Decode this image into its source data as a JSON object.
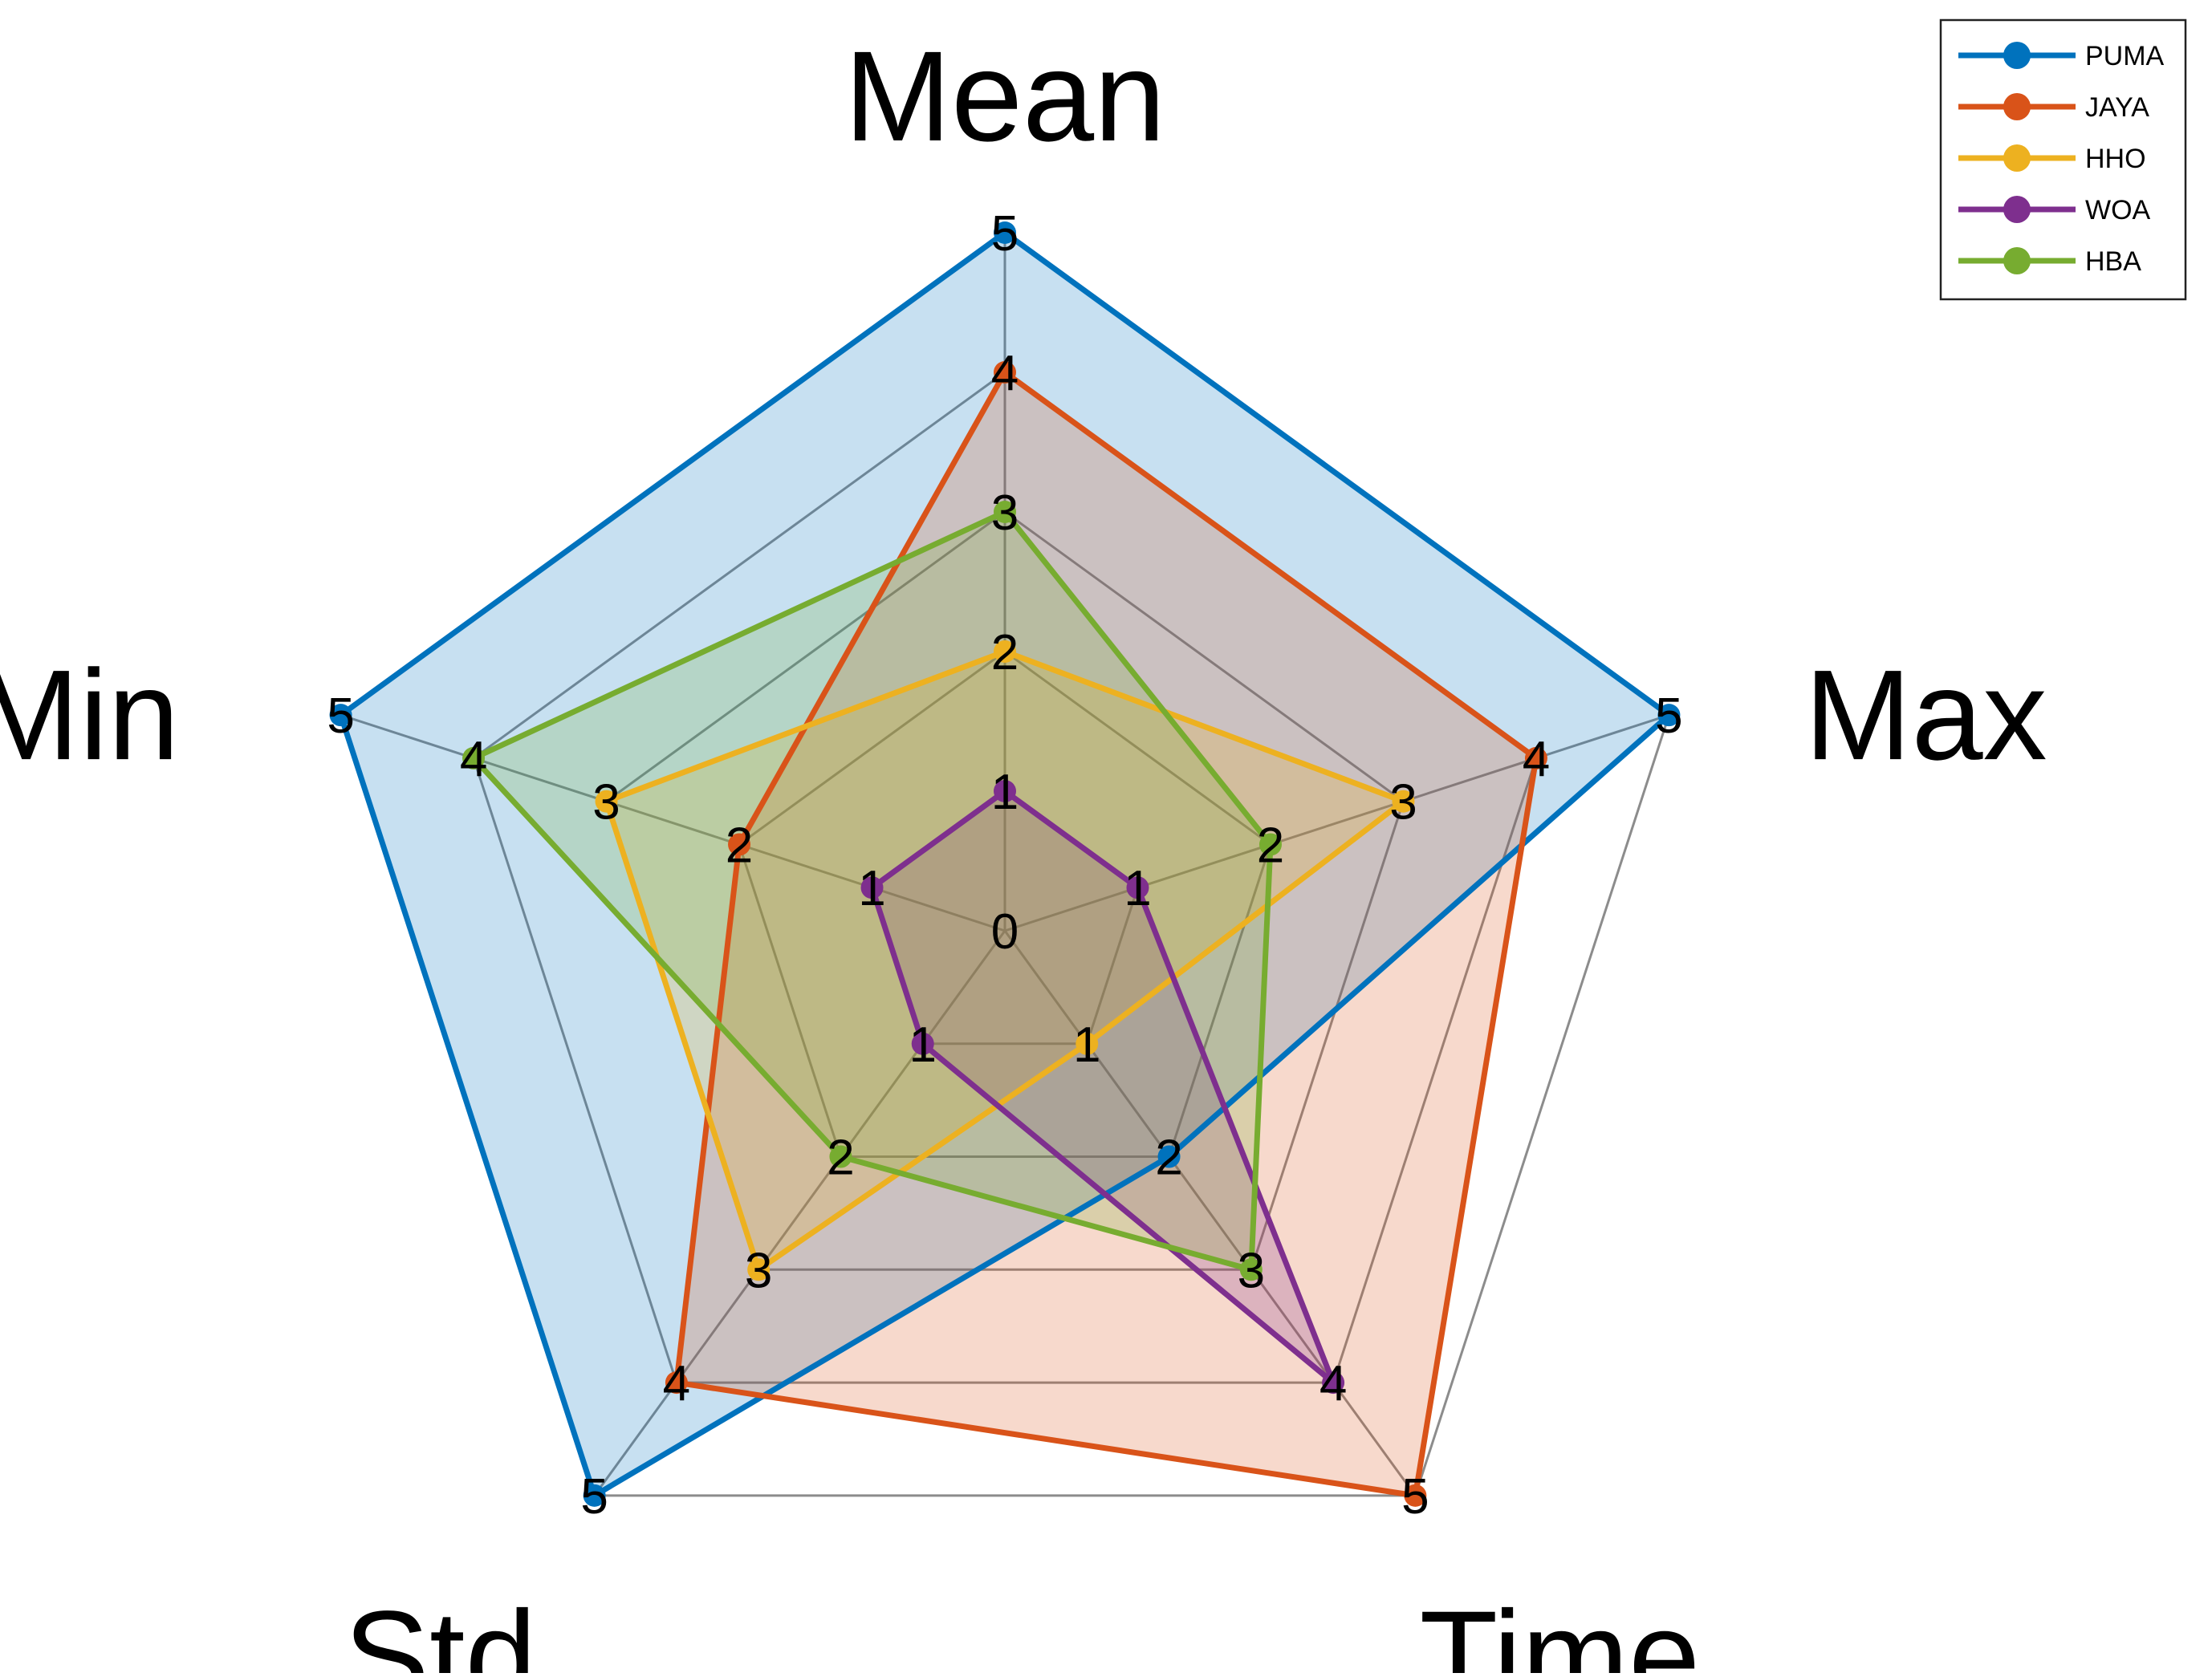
{
  "chart_data": {
    "type": "radar",
    "axes": [
      "Mean",
      "Max",
      "Time",
      "Std.",
      "Min"
    ],
    "range": [
      0,
      5
    ],
    "ticks": [
      0,
      1,
      2,
      3,
      4,
      5
    ],
    "grid": true,
    "legend": {
      "position": "top-right"
    },
    "series": [
      {
        "name": "PUMA",
        "color": "#0072BD",
        "values": [
          5,
          5,
          2,
          5,
          5
        ]
      },
      {
        "name": "JAYA",
        "color": "#D95319",
        "values": [
          4,
          4,
          5,
          4,
          2
        ]
      },
      {
        "name": "HHO",
        "color": "#EDB120",
        "values": [
          2,
          3,
          1,
          3,
          3
        ]
      },
      {
        "name": "WOA",
        "color": "#7E2F8E",
        "values": [
          1,
          1,
          4,
          1,
          1
        ]
      },
      {
        "name": "HBA",
        "color": "#77AC30",
        "values": [
          3,
          2,
          3,
          2,
          4
        ]
      }
    ]
  }
}
